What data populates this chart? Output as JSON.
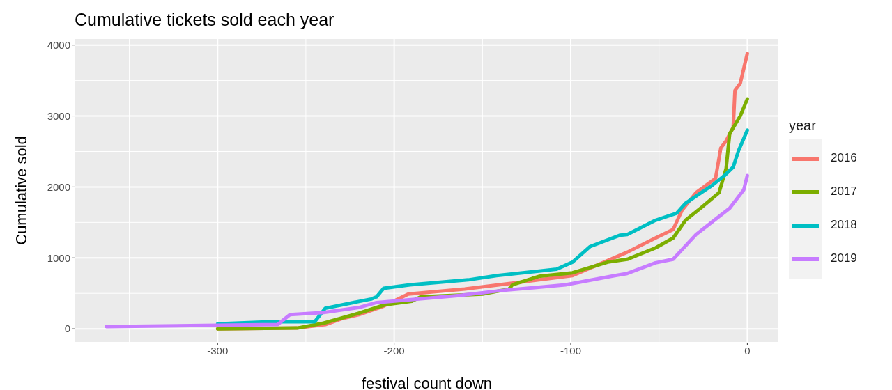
{
  "chart_data": {
    "type": "line",
    "title": "Cumulative tickets sold each year",
    "xlabel": "festival count down",
    "ylabel": "Cumulative sold",
    "legend_title": "year",
    "legend": "right",
    "grid": true,
    "line_style": "solid",
    "marker": "none",
    "xlim": [
      -381,
      18
    ],
    "xticks": [
      -300,
      -200,
      -100,
      0
    ],
    "ylim": [
      -195,
      4095
    ],
    "yticks": [
      0,
      1000,
      2000,
      3000,
      4000
    ],
    "series": [
      {
        "name": "2016",
        "color": "#f8766d",
        "x": [
          -300,
          -255,
          -239,
          -230,
          -220,
          -206,
          -192,
          -160,
          -131,
          -99,
          -68,
          -52,
          -42,
          -37,
          -29,
          -18,
          -15,
          -12,
          -8,
          -7,
          -4,
          0
        ],
        "values": [
          0,
          10,
          60,
          140,
          200,
          320,
          490,
          560,
          650,
          750,
          1080,
          1280,
          1400,
          1670,
          1920,
          2120,
          2550,
          2650,
          2840,
          3360,
          3460,
          3880
        ]
      },
      {
        "name": "2017",
        "color": "#7cae00",
        "x": [
          -300,
          -255,
          -240,
          -220,
          -205,
          -190,
          -185,
          -150,
          -135,
          -133,
          -118,
          -99,
          -79,
          -68,
          -52,
          -42,
          -35,
          -25,
          -16,
          -12,
          -10,
          -4,
          0
        ],
        "values": [
          0,
          10,
          80,
          220,
          340,
          390,
          450,
          490,
          560,
          620,
          740,
          790,
          940,
          980,
          1140,
          1280,
          1530,
          1730,
          1920,
          2260,
          2750,
          3000,
          3240
        ]
      },
      {
        "name": "2018",
        "color": "#00bfc4",
        "x": [
          -300,
          -270,
          -245,
          -239,
          -213,
          -210,
          -206,
          -191,
          -158,
          -142,
          -108,
          -99,
          -89,
          -72,
          -68,
          -52,
          -40,
          -35,
          -20,
          -13,
          -8,
          -5,
          0
        ],
        "values": [
          70,
          100,
          100,
          290,
          420,
          450,
          570,
          620,
          690,
          750,
          840,
          940,
          1160,
          1320,
          1330,
          1530,
          1630,
          1770,
          2020,
          2160,
          2280,
          2510,
          2800
        ]
      },
      {
        "name": "2019",
        "color": "#c77cff",
        "x": [
          -363,
          -300,
          -266,
          -259,
          -240,
          -220,
          -210,
          -163,
          -139,
          -103,
          -75,
          -68,
          -52,
          -42,
          -29,
          -10,
          -2,
          0
        ],
        "values": [
          30,
          50,
          60,
          200,
          230,
          300,
          370,
          470,
          540,
          620,
          750,
          780,
          930,
          980,
          1330,
          1700,
          1960,
          2160
        ]
      }
    ]
  }
}
